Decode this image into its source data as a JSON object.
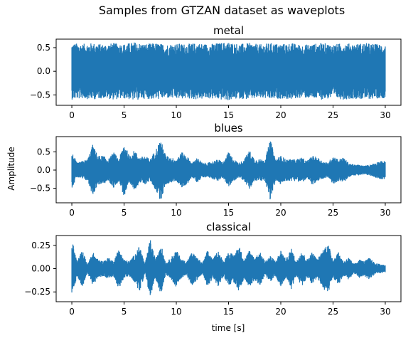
{
  "chart_data": {
    "type": "line",
    "suptitle": "Samples from GTZAN dataset as waveplots",
    "xlabel": "time [s]",
    "ylabel": "Amplitude",
    "colors": {
      "series": "#1f77b4"
    },
    "subplots": [
      {
        "title": "metal",
        "xlim": [
          -1.5,
          31.5
        ],
        "ylim": [
          -0.72,
          0.68
        ],
        "xticks": [
          0,
          5,
          10,
          15,
          20,
          25,
          30
        ],
        "yticks": [
          0.5,
          0.0,
          -0.5
        ],
        "ytick_labels": [
          "0.5",
          "0.0",
          "−0.5"
        ],
        "envelope": {
          "t": [
            0,
            1,
            2,
            3,
            4,
            5,
            6,
            7,
            8,
            9,
            10,
            11,
            12,
            13,
            14,
            15,
            16,
            17,
            18,
            19,
            20,
            21,
            22,
            23,
            24,
            25,
            26,
            27,
            28,
            29,
            30
          ],
          "amp": [
            0.6,
            0.58,
            0.6,
            0.57,
            0.6,
            0.58,
            0.62,
            0.58,
            0.6,
            0.57,
            0.59,
            0.58,
            0.6,
            0.58,
            0.6,
            0.62,
            0.58,
            0.6,
            0.57,
            0.6,
            0.58,
            0.6,
            0.56,
            0.58,
            0.6,
            0.57,
            0.6,
            0.58,
            0.6,
            0.58,
            0.57
          ]
        }
      },
      {
        "title": "blues",
        "xlim": [
          -1.5,
          31.5
        ],
        "ylim": [
          -0.9,
          0.92
        ],
        "xticks": [
          0,
          5,
          10,
          15,
          20,
          25,
          30
        ],
        "yticks": [
          0.5,
          0.0,
          -0.5
        ],
        "ytick_labels": [
          "0.5",
          "0.0",
          "−0.5"
        ],
        "envelope": {
          "t": [
            0,
            0.5,
            1,
            1.5,
            2,
            2.5,
            3,
            3.5,
            4,
            4.5,
            5,
            5.5,
            6,
            6.5,
            7,
            7.5,
            8,
            8.5,
            9,
            9.5,
            10,
            10.5,
            11,
            11.5,
            12,
            12.5,
            13,
            13.5,
            14,
            14.5,
            15,
            15.5,
            16,
            16.5,
            17,
            17.5,
            18,
            18.5,
            19,
            19.5,
            20,
            20.5,
            21,
            21.5,
            22,
            22.5,
            23,
            23.5,
            24,
            24.5,
            25,
            25.5,
            26,
            26.5,
            27,
            27.5,
            28,
            28.5,
            29,
            29.5,
            30
          ],
          "amp": [
            0.5,
            0.2,
            0.25,
            0.3,
            0.7,
            0.4,
            0.4,
            0.3,
            0.5,
            0.3,
            0.75,
            0.4,
            0.55,
            0.35,
            0.4,
            0.3,
            0.55,
            0.85,
            0.4,
            0.35,
            0.3,
            0.5,
            0.4,
            0.2,
            0.35,
            0.2,
            0.2,
            0.25,
            0.3,
            0.22,
            0.5,
            0.3,
            0.2,
            0.3,
            0.55,
            0.3,
            0.3,
            0.3,
            0.85,
            0.3,
            0.4,
            0.3,
            0.3,
            0.3,
            0.35,
            0.25,
            0.4,
            0.35,
            0.25,
            0.2,
            0.4,
            0.3,
            0.35,
            0.2,
            0.15,
            0.15,
            0.12,
            0.15,
            0.2,
            0.25,
            0.25
          ]
        }
      },
      {
        "title": "classical",
        "xlim": [
          -1.5,
          31.5
        ],
        "ylim": [
          -0.355,
          0.355
        ],
        "xticks": [
          0,
          5,
          10,
          15,
          20,
          25,
          30
        ],
        "yticks": [
          0.25,
          0.0,
          -0.25
        ],
        "ytick_labels": [
          "0.25",
          "0.00",
          "−0.25"
        ],
        "envelope": {
          "t": [
            0,
            0.5,
            1,
            1.5,
            2,
            2.5,
            3,
            3.5,
            4,
            4.5,
            5,
            5.5,
            6,
            6.5,
            7,
            7.5,
            8,
            8.5,
            9,
            9.5,
            10,
            10.5,
            11,
            11.5,
            12,
            12.5,
            13,
            13.5,
            14,
            14.5,
            15,
            15.5,
            16,
            16.5,
            17,
            17.5,
            18,
            18.5,
            19,
            19.5,
            20,
            20.5,
            21,
            21.5,
            22,
            22.5,
            23,
            23.5,
            24,
            24.5,
            25,
            25.5,
            26,
            26.5,
            27,
            27.5,
            28,
            28.5,
            29,
            29.5,
            30
          ],
          "amp": [
            0.32,
            0.08,
            0.2,
            0.05,
            0.18,
            0.1,
            0.08,
            0.12,
            0.08,
            0.22,
            0.1,
            0.08,
            0.15,
            0.25,
            0.05,
            0.32,
            0.1,
            0.28,
            0.06,
            0.12,
            0.2,
            0.1,
            0.08,
            0.18,
            0.12,
            0.06,
            0.2,
            0.1,
            0.2,
            0.08,
            0.18,
            0.15,
            0.25,
            0.1,
            0.2,
            0.12,
            0.18,
            0.08,
            0.14,
            0.08,
            0.2,
            0.1,
            0.22,
            0.08,
            0.2,
            0.1,
            0.18,
            0.1,
            0.2,
            0.28,
            0.1,
            0.18,
            0.08,
            0.12,
            0.05,
            0.1,
            0.08,
            0.12,
            0.06,
            0.05,
            0.04
          ]
        }
      }
    ]
  }
}
